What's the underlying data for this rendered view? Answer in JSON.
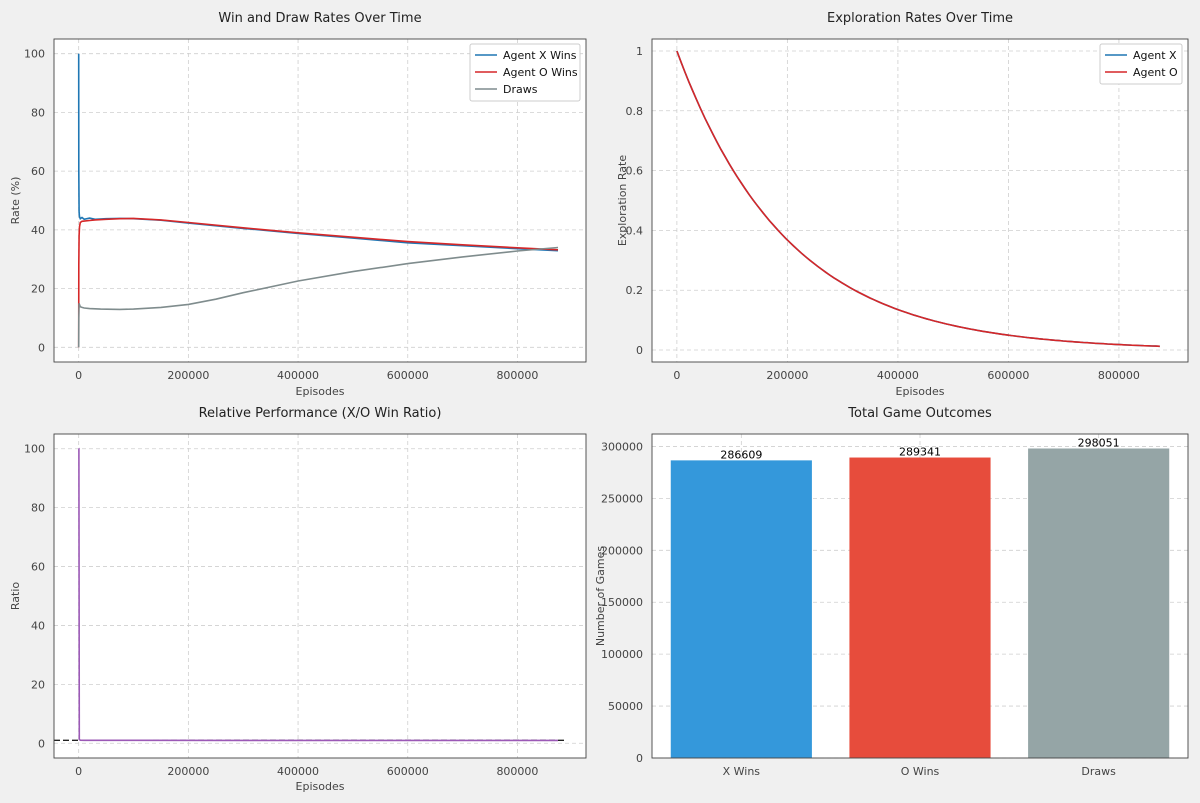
{
  "chart_data": [
    {
      "type": "line",
      "title": "Win and Draw Rates Over Time",
      "xlabel": "Episodes",
      "ylabel": "Rate (%)",
      "xlim": [
        -45000,
        925000
      ],
      "ylim": [
        -5,
        105
      ],
      "x_ticks": [
        0,
        200000,
        400000,
        600000,
        800000
      ],
      "y_ticks": [
        0,
        20,
        40,
        60,
        80,
        100
      ],
      "grid": true,
      "legend": "top-right",
      "series": [
        {
          "name": "Agent X Wins",
          "color": "#1f77b4",
          "x": [
            0,
            300,
            800,
            1500,
            3000,
            6000,
            10000,
            20000,
            30000,
            50000,
            75000,
            100000,
            150000,
            200000,
            300000,
            400000,
            500000,
            600000,
            700000,
            800000,
            874000
          ],
          "y": [
            100,
            60,
            46,
            44.5,
            43.8,
            44.2,
            43.6,
            44.0,
            43.6,
            43.8,
            43.9,
            43.8,
            43.3,
            42.3,
            40.5,
            38.8,
            37.2,
            35.6,
            34.6,
            33.6,
            32.9
          ]
        },
        {
          "name": "Agent O Wins",
          "color": "#d62728",
          "x": [
            0,
            300,
            800,
            1500,
            3000,
            6000,
            10000,
            20000,
            30000,
            50000,
            75000,
            100000,
            150000,
            200000,
            300000,
            400000,
            500000,
            600000,
            700000,
            800000,
            874000
          ],
          "y": [
            0,
            28,
            38,
            41,
            42.5,
            42.9,
            43.0,
            43.2,
            43.4,
            43.6,
            43.8,
            43.9,
            43.4,
            42.5,
            40.7,
            39.0,
            37.5,
            36.0,
            34.9,
            33.9,
            33.2
          ]
        },
        {
          "name": "Draws",
          "color": "#7f8c8d",
          "x": [
            0,
            300,
            800,
            1500,
            3000,
            6000,
            10000,
            20000,
            40000,
            75000,
            100000,
            150000,
            200000,
            250000,
            300000,
            400000,
            500000,
            600000,
            700000,
            800000,
            874000
          ],
          "y": [
            0,
            10,
            15,
            14.5,
            13.8,
            13.6,
            13.4,
            13.2,
            13.0,
            12.9,
            13.0,
            13.6,
            14.6,
            16.4,
            18.6,
            22.6,
            25.8,
            28.5,
            30.8,
            32.8,
            34.0
          ]
        }
      ]
    },
    {
      "type": "line",
      "title": "Exploration Rates Over Time",
      "xlabel": "Episodes",
      "ylabel": "Exploration Rate",
      "xlim": [
        -45000,
        925000
      ],
      "ylim": [
        -0.04,
        1.04
      ],
      "x_ticks": [
        0,
        200000,
        400000,
        600000,
        800000
      ],
      "y_ticks": [
        0.0,
        0.2,
        0.4,
        0.6,
        0.8,
        1.0
      ],
      "grid": true,
      "legend": "top-right",
      "curve": "exponential",
      "decay_per_episode": 5e-06,
      "series": [
        {
          "name": "Agent X",
          "color": "#1f77b4",
          "x_start": 0,
          "x_end": 874000,
          "y_start": 1.0,
          "y_end": 0.013
        },
        {
          "name": "Agent O",
          "color": "#d62728",
          "x_start": 0,
          "x_end": 874000,
          "y_start": 1.0,
          "y_end": 0.013
        }
      ]
    },
    {
      "type": "line",
      "title": "Relative Performance (X/O Win Ratio)",
      "xlabel": "Episodes",
      "ylabel": "Ratio",
      "xlim": [
        -45000,
        925000
      ],
      "ylim": [
        -5,
        105
      ],
      "x_ticks": [
        0,
        200000,
        400000,
        600000,
        800000
      ],
      "y_ticks": [
        0,
        20,
        40,
        60,
        80,
        100
      ],
      "grid": true,
      "reference_line": {
        "y": 1.0,
        "style": "dashed",
        "color": "#222222"
      },
      "series": [
        {
          "color": "#9b59b6",
          "x": [
            0,
            400,
            1200,
            3000,
            10000,
            100000,
            300000,
            500000,
            700000,
            874000
          ],
          "y": [
            100,
            100,
            1.3,
            1.05,
            1.02,
            1.0,
            0.99,
            0.99,
            0.99,
            0.99
          ]
        }
      ]
    },
    {
      "type": "bar",
      "title": "Total Game Outcomes",
      "xlabel": "",
      "ylabel": "Number of Games",
      "categories": [
        "X Wins",
        "O Wins",
        "Draws"
      ],
      "values": [
        286609,
        289341,
        298051
      ],
      "value_labels": [
        "286609",
        "289341",
        "298051"
      ],
      "colors": [
        "#3498db",
        "#e74c3c",
        "#95a5a6"
      ],
      "ylim": [
        0,
        312000
      ],
      "y_ticks": [
        0,
        50000,
        100000,
        150000,
        200000,
        250000,
        300000
      ],
      "grid": true
    }
  ]
}
